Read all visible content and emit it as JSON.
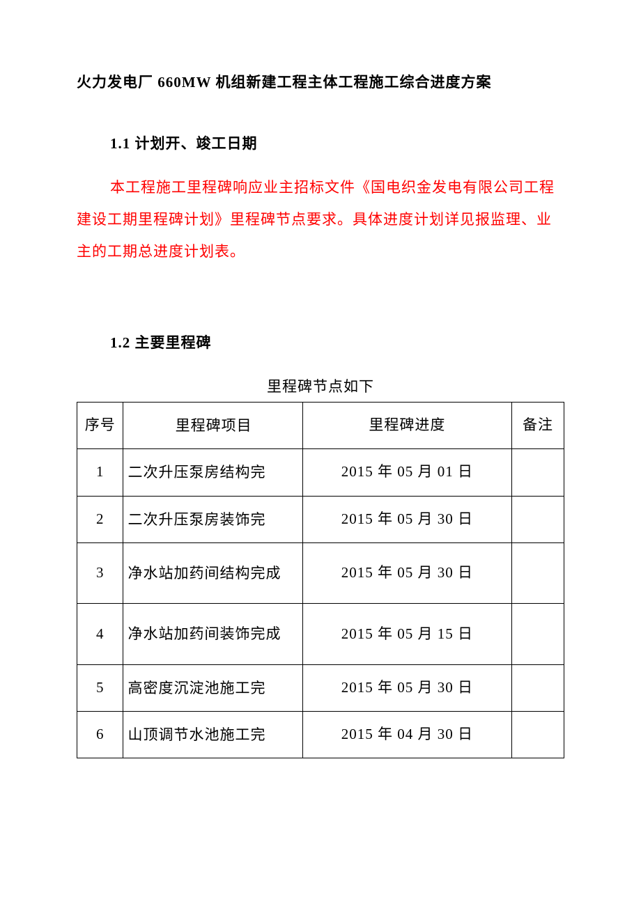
{
  "document": {
    "title": "火力发电厂 660MW 机组新建工程主体工程施工综合进度方案",
    "section1": {
      "heading": "1.1 计划开、竣工日期",
      "paragraph": "本工程施工里程碑响应业主招标文件《国电织金发电有限公司工程建设工期里程碑计划》里程碑节点要求。具体进度计划详见报监理、业主的工期总进度计划表。"
    },
    "section2": {
      "heading": "1.2 主要里程碑",
      "table_caption": "里程碑节点如下",
      "columns": {
        "seq": "序号",
        "item": "里程碑项目",
        "progress": "里程碑进度",
        "remark": "备注"
      },
      "rows": [
        {
          "seq": "1",
          "item": "二次升压泵房结构完",
          "progress": "2015 年 05 月 01 日",
          "remark": ""
        },
        {
          "seq": "2",
          "item": "二次升压泵房装饰完",
          "progress": "2015 年 05 月 30 日",
          "remark": ""
        },
        {
          "seq": "3",
          "item": "净水站加药间结构完成",
          "progress": "2015 年 05 月 30 日",
          "remark": ""
        },
        {
          "seq": "4",
          "item": "净水站加药间装饰完成",
          "progress": "2015 年 05 月 15 日",
          "remark": ""
        },
        {
          "seq": "5",
          "item": "高密度沉淀池施工完",
          "progress": "2015 年 05 月 30 日",
          "remark": ""
        },
        {
          "seq": "6",
          "item": "山顶调节水池施工完",
          "progress": "2015 年 04 月 30 日",
          "remark": ""
        }
      ]
    }
  },
  "colors": {
    "text": "#000000",
    "red_text": "#ff0000",
    "background": "#ffffff",
    "border": "#000000"
  }
}
